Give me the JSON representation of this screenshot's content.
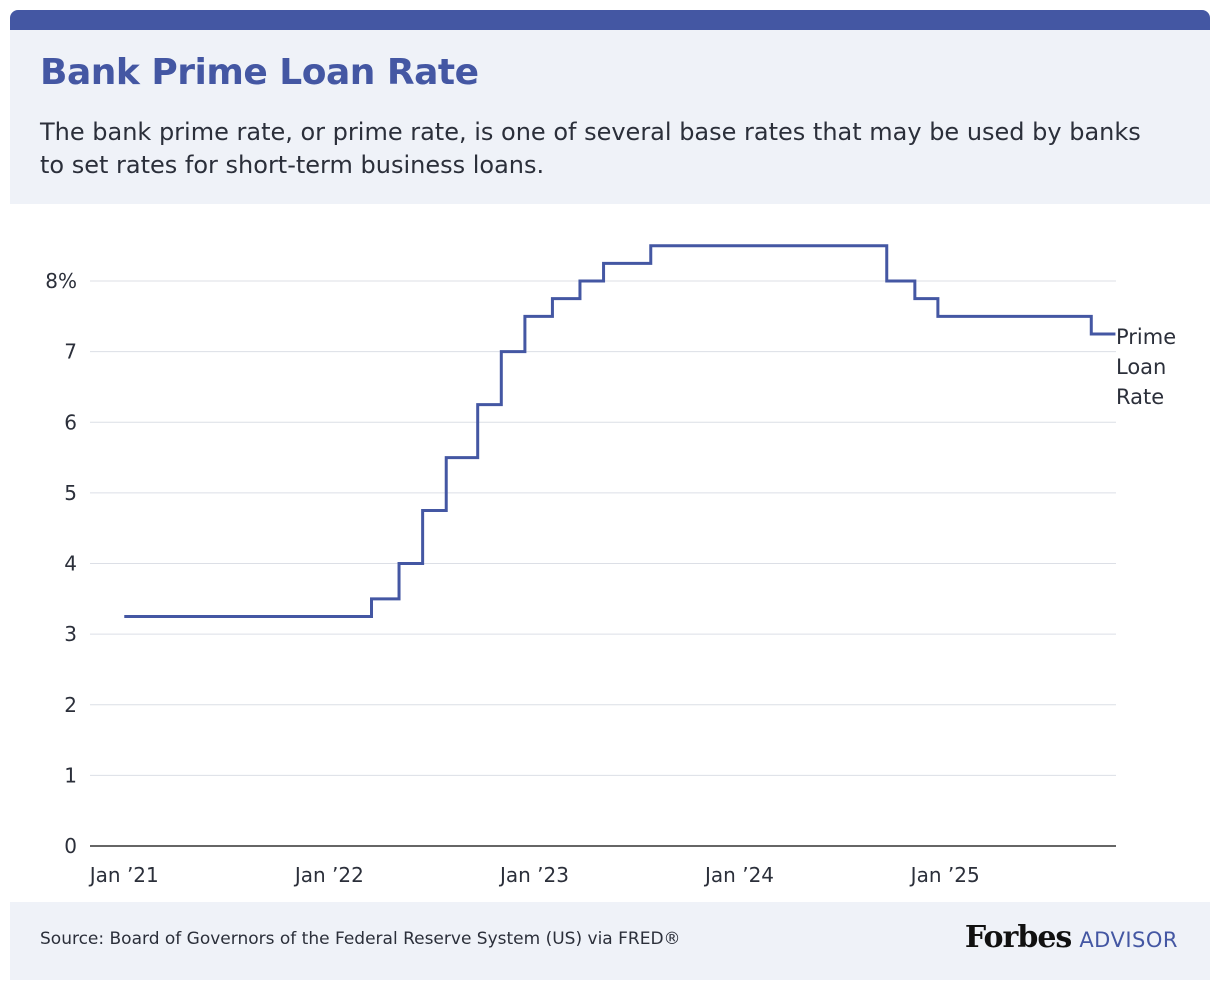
{
  "header": {
    "title": "Bank Prime Loan Rate",
    "subtitle": "The bank prime rate, or prime rate, is one of several base rates that may be used by banks to set rates for short-term business loans."
  },
  "footer": {
    "source": "Source: Board of Governors of the Federal Reserve System (US) via FRED®",
    "brand_main": "Forbes",
    "brand_sub": "ADVISOR"
  },
  "colors": {
    "accent": "#4457a3",
    "header_bg": "#eff2f8",
    "grid": "#dcdfe6",
    "axis": "#333333"
  },
  "chart_data": {
    "type": "line",
    "step": true,
    "title": "Bank Prime Loan Rate",
    "xlabel": "",
    "ylabel": "",
    "ylim": [
      0,
      8
    ],
    "yticks": [
      0,
      1,
      2,
      3,
      4,
      5,
      6,
      7,
      8
    ],
    "ytick_labels": [
      "0",
      "1",
      "2",
      "3",
      "4",
      "5",
      "6",
      "7",
      "8%"
    ],
    "xlim": [
      "2020-11-01",
      "2025-11-01"
    ],
    "xticks": [
      "2021-01-01",
      "2022-01-01",
      "2023-01-01",
      "2024-01-01",
      "2025-01-01"
    ],
    "xtick_labels": [
      "Jan ’21",
      "Jan ’22",
      "Jan ’23",
      "Jan ’24",
      "Jan ’25"
    ],
    "grid": true,
    "legend": "end-of-line label",
    "series": [
      {
        "name": "Prime Loan Rate",
        "label_lines": [
          "Prime",
          "Loan",
          "Rate"
        ],
        "points": [
          [
            "2021-01-01",
            3.25
          ],
          [
            "2022-03-17",
            3.5
          ],
          [
            "2022-05-05",
            4.0
          ],
          [
            "2022-06-16",
            4.75
          ],
          [
            "2022-07-28",
            5.5
          ],
          [
            "2022-09-22",
            6.25
          ],
          [
            "2022-11-03",
            7.0
          ],
          [
            "2022-12-15",
            7.5
          ],
          [
            "2023-02-02",
            7.75
          ],
          [
            "2023-03-23",
            8.0
          ],
          [
            "2023-05-04",
            8.25
          ],
          [
            "2023-07-27",
            8.5
          ],
          [
            "2024-09-19",
            8.0
          ],
          [
            "2024-11-08",
            7.75
          ],
          [
            "2024-12-19",
            7.5
          ],
          [
            "2025-09-18",
            7.25
          ],
          [
            "2025-10-31",
            7.25
          ]
        ]
      }
    ]
  }
}
